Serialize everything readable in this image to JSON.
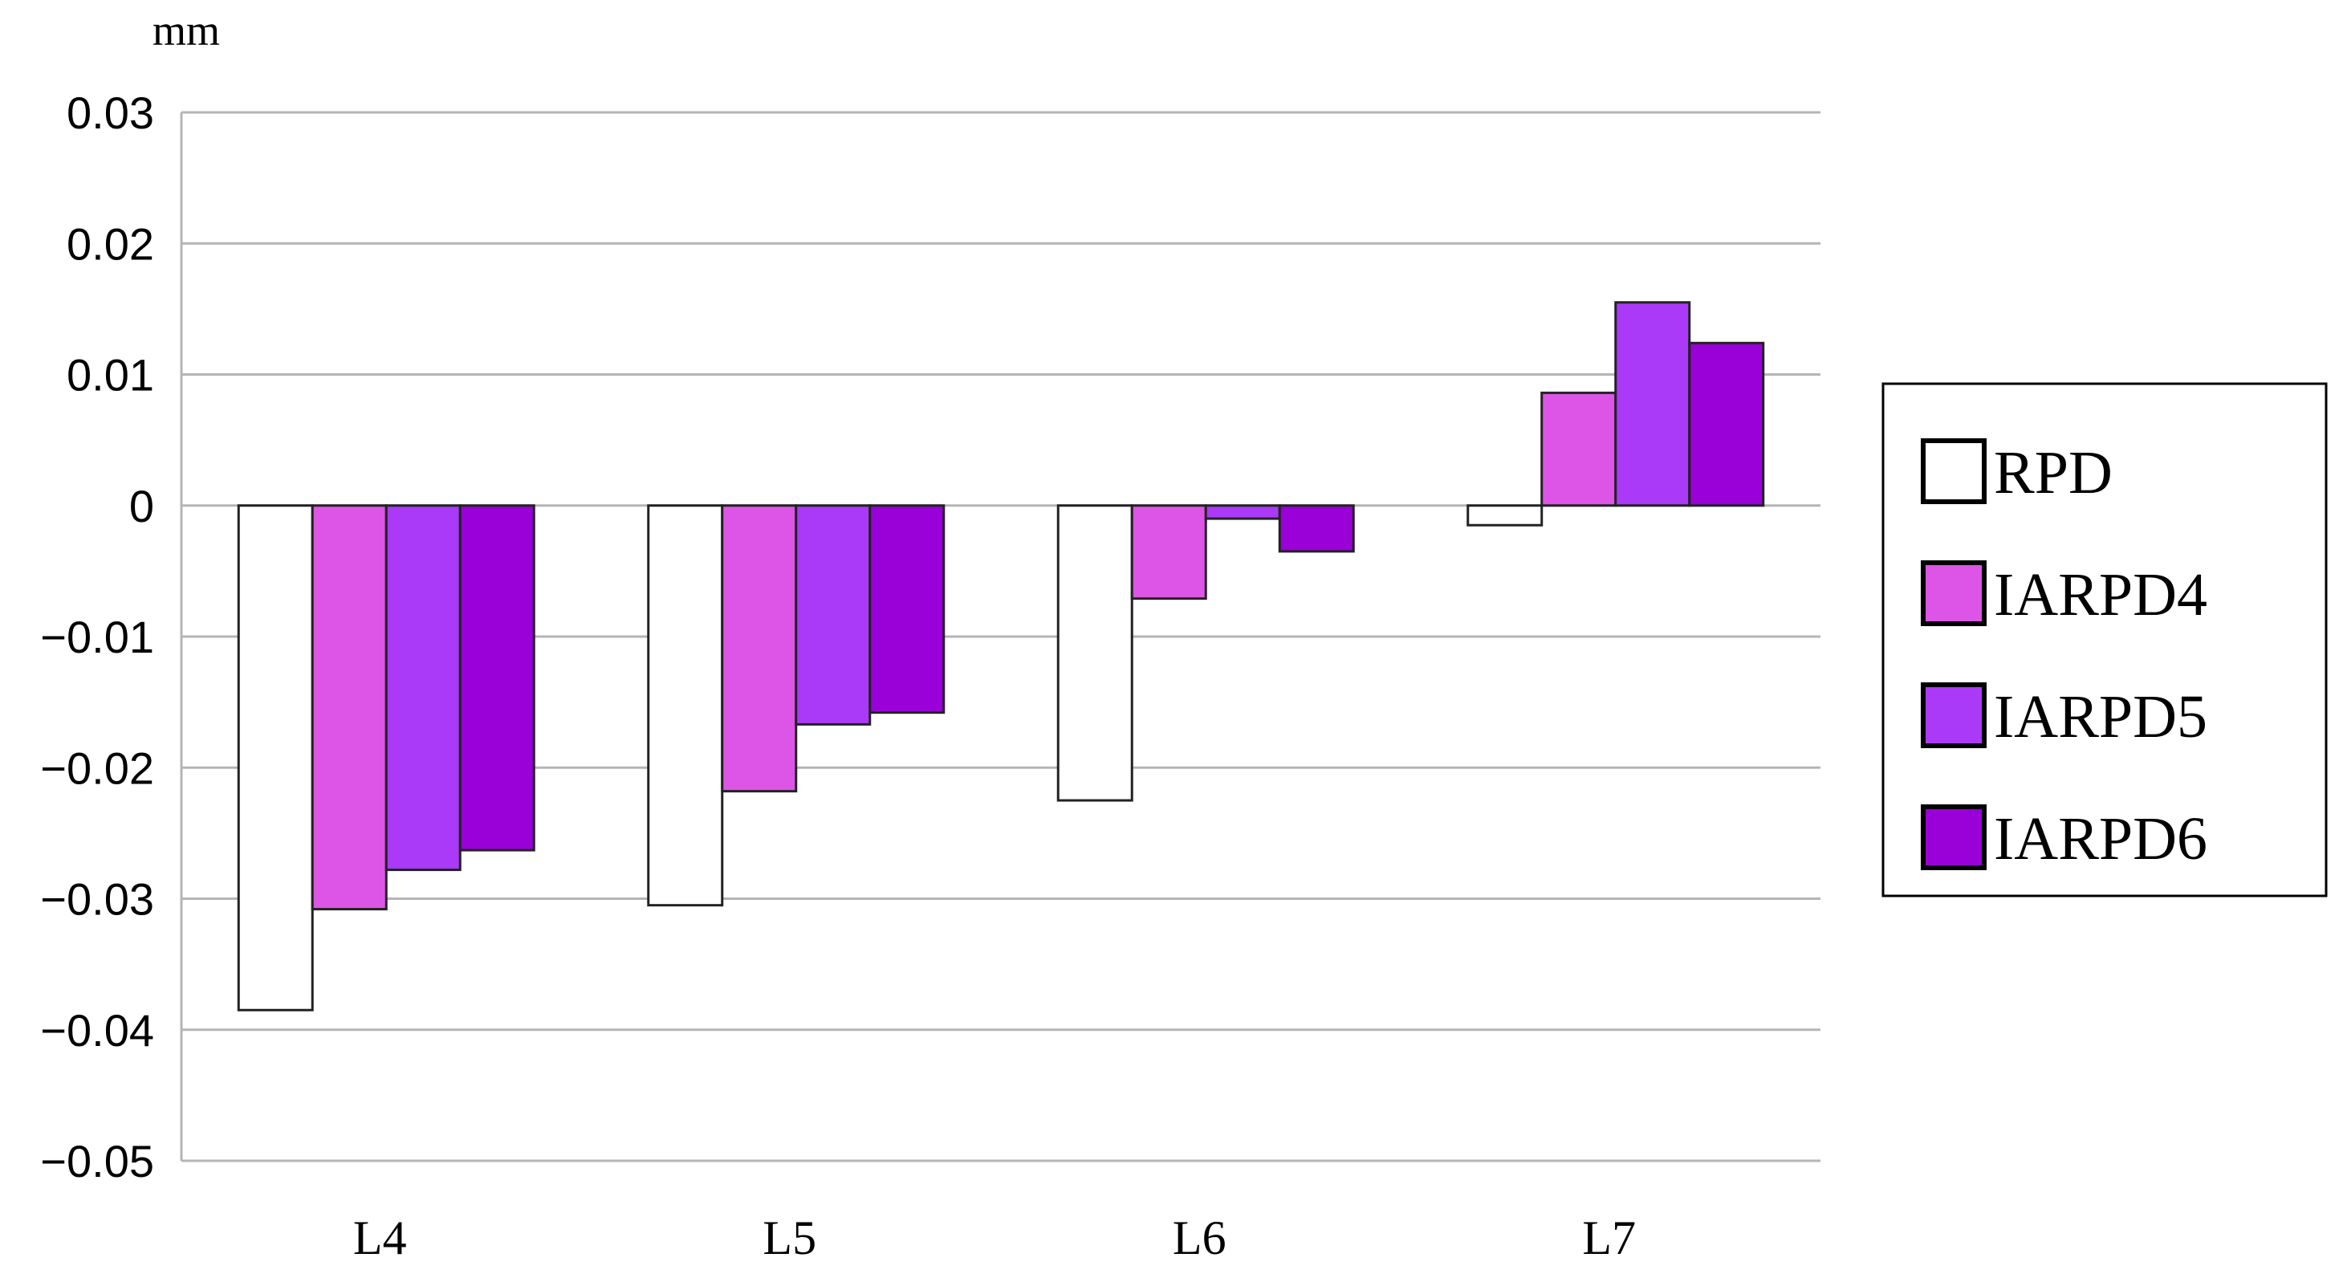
{
  "chart_data": {
    "type": "bar",
    "title": "",
    "ylabel": "mm",
    "xlabel": "",
    "ylim": [
      -0.05,
      0.03
    ],
    "yticks": [
      0.03,
      0.02,
      0.01,
      0,
      -0.01,
      -0.02,
      -0.03,
      -0.04,
      -0.05
    ],
    "ytick_labels": [
      "0.03",
      "0.02",
      "0.01",
      "0",
      "−0.01",
      "−0.02",
      "−0.03",
      "−0.04",
      "−0.05"
    ],
    "grid": true,
    "legend_position": "right",
    "categories": [
      "L4",
      "L5",
      "L6",
      "L7"
    ],
    "series": [
      {
        "name": "RPD",
        "color": "#ffffff",
        "values": [
          -0.0385,
          -0.0305,
          -0.0225,
          -0.0015
        ]
      },
      {
        "name": "IARPD4",
        "color": "#dd55e6",
        "values": [
          -0.0308,
          -0.0218,
          -0.0071,
          0.0086
        ]
      },
      {
        "name": "IARPD5",
        "color": "#aa3af7",
        "values": [
          -0.0278,
          -0.0167,
          -0.001,
          0.0155
        ]
      },
      {
        "name": "IARPD6",
        "color": "#9a00d8",
        "values": [
          -0.0263,
          -0.0158,
          -0.0035,
          0.0124
        ]
      }
    ]
  }
}
